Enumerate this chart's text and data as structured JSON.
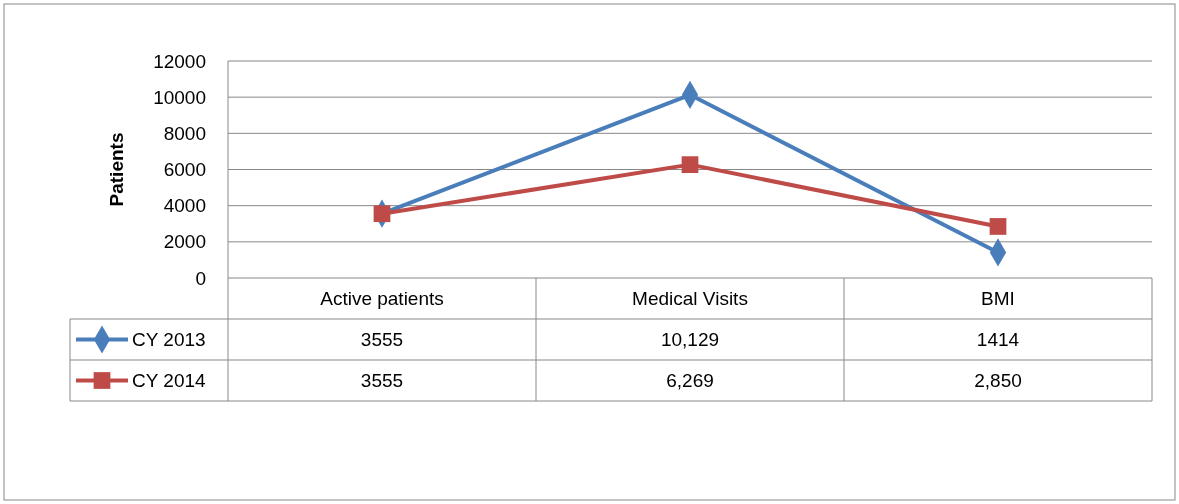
{
  "chart_data": {
    "type": "line",
    "ylabel": "Patients",
    "categories": [
      "Active patients",
      "Medical Visits",
      "BMI"
    ],
    "series": [
      {
        "name": "CY 2013",
        "color": "#4a7ebb",
        "marker": "diamond",
        "values": [
          3555,
          10129,
          1414
        ],
        "value_labels": [
          "3555",
          "10,129",
          "1414"
        ]
      },
      {
        "name": "CY 2014",
        "color": "#be4b48",
        "marker": "square",
        "values": [
          3555,
          6269,
          2850
        ],
        "value_labels": [
          "3555",
          "6,269",
          "2,850"
        ]
      }
    ],
    "ylim": [
      0,
      12000
    ],
    "yticks": [
      0,
      2000,
      4000,
      6000,
      8000,
      10000,
      12000
    ],
    "grid": "y",
    "legend": "bottom",
    "line_style": "solid"
  }
}
